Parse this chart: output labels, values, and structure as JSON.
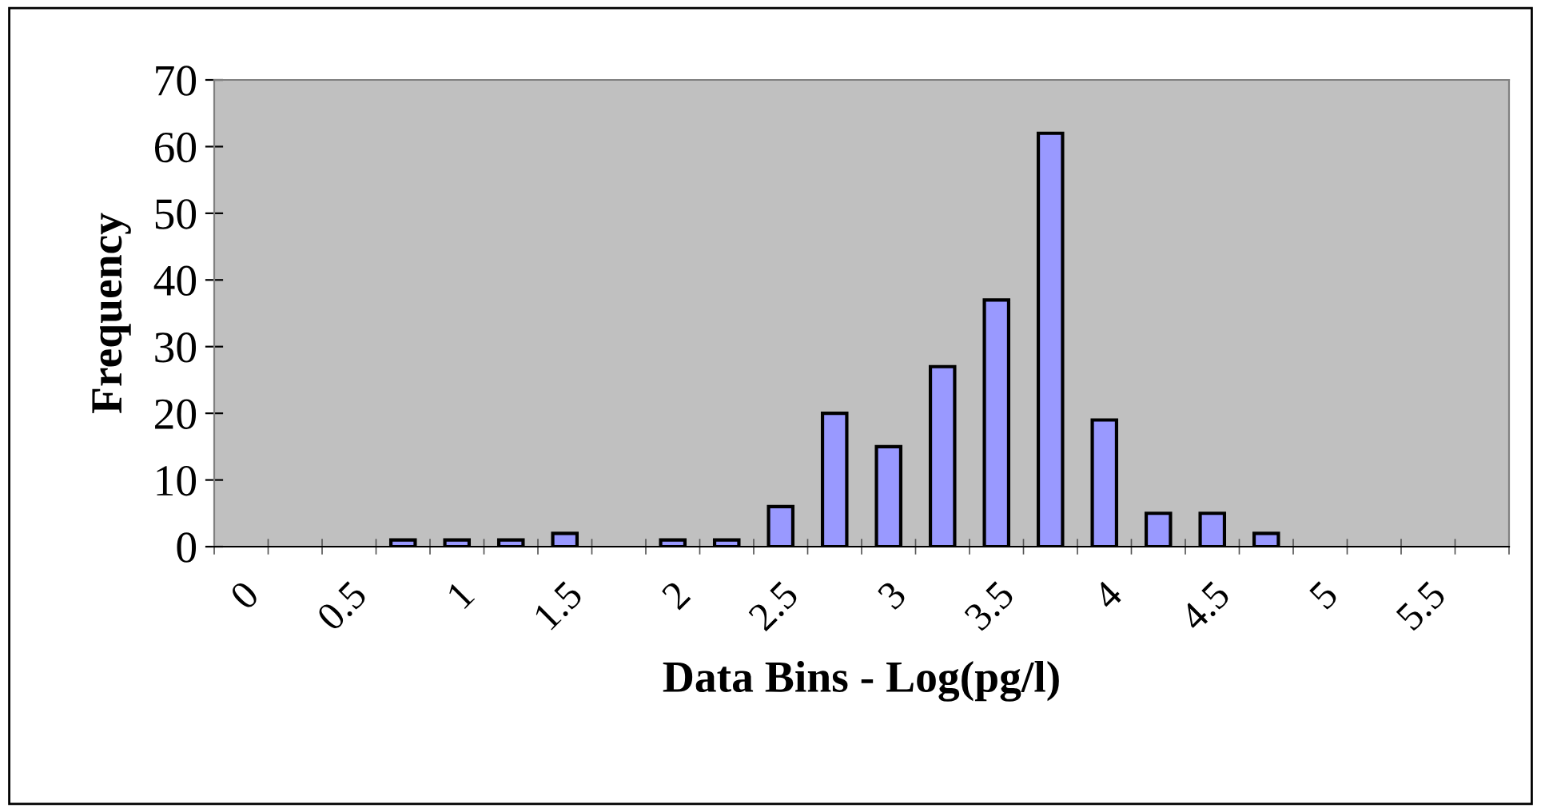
{
  "chart_data": {
    "type": "bar",
    "xlabel": "Data Bins - Log(pg/l)",
    "ylabel": "Frequency",
    "categories": [
      "0",
      null,
      "0.5",
      null,
      "1",
      null,
      "1.5",
      null,
      "2",
      null,
      "2.5",
      null,
      "3",
      null,
      "3.5",
      null,
      "4",
      null,
      "4.5",
      null,
      "5",
      null,
      "5.5",
      null
    ],
    "values": [
      0,
      0,
      0,
      1,
      1,
      1,
      2,
      0,
      1,
      1,
      6,
      20,
      15,
      27,
      37,
      62,
      19,
      5,
      5,
      2,
      0,
      0,
      0,
      0
    ],
    "color": "#9999ff",
    "ylim": [
      0,
      70
    ],
    "yticks": [
      0,
      10,
      20,
      30,
      40,
      50,
      60,
      70
    ],
    "grid": false,
    "legend": false
  }
}
